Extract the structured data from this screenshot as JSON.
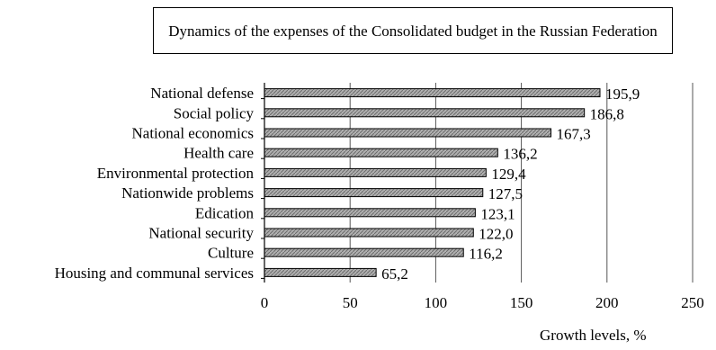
{
  "chart_data": {
    "type": "bar",
    "orientation": "horizontal",
    "title": "Dynamics of the expenses of the Consolidated budget in the Russian Federation",
    "xlabel": "Growth levels, %",
    "ylabel": "",
    "categories": [
      "National defense",
      "Social policy",
      "National economics",
      "Health care",
      "Environmental protection",
      "Nationwide problems",
      "Edication",
      "National security",
      "Culture",
      "Housing and communal services"
    ],
    "values": [
      195.9,
      186.8,
      167.3,
      136.2,
      129.4,
      127.5,
      123.1,
      122.0,
      116.2,
      65.2
    ],
    "data_labels": [
      "195,9",
      "186,8",
      "167,3",
      "136,2",
      "129,4",
      "127,5",
      "123,1",
      "122,0",
      "116,2",
      "65,2"
    ],
    "xlim": [
      0,
      250
    ],
    "xticks": [
      0,
      50,
      100,
      150,
      200,
      250
    ],
    "grid": "vertical",
    "legend": "none",
    "bar_color": "#a8a8a8"
  }
}
